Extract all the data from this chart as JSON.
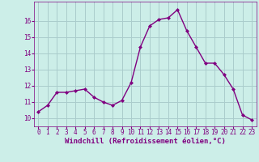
{
  "x": [
    0,
    1,
    2,
    3,
    4,
    5,
    6,
    7,
    8,
    9,
    10,
    11,
    12,
    13,
    14,
    15,
    16,
    17,
    18,
    19,
    20,
    21,
    22,
    23
  ],
  "y": [
    10.4,
    10.8,
    11.6,
    11.6,
    11.7,
    11.8,
    11.3,
    11.0,
    10.8,
    11.1,
    12.2,
    14.4,
    15.7,
    16.1,
    16.2,
    16.7,
    15.4,
    14.4,
    13.4,
    13.4,
    12.7,
    11.8,
    10.2,
    9.9
  ],
  "line_color": "#800080",
  "marker": "D",
  "marker_size": 2.0,
  "bg_color": "#cceee8",
  "grid_color": "#aacccc",
  "xlabel": "Windchill (Refroidissement éolien,°C)",
  "xlabel_color": "#800080",
  "tick_color": "#800080",
  "ylim": [
    9.5,
    17.2
  ],
  "yticks": [
    10,
    11,
    12,
    13,
    14,
    15,
    16
  ],
  "xticks": [
    0,
    1,
    2,
    3,
    4,
    5,
    6,
    7,
    8,
    9,
    10,
    11,
    12,
    13,
    14,
    15,
    16,
    17,
    18,
    19,
    20,
    21,
    22,
    23
  ],
  "tick_fontsize": 5.5,
  "xlabel_fontsize": 6.5,
  "linewidth": 1.0
}
